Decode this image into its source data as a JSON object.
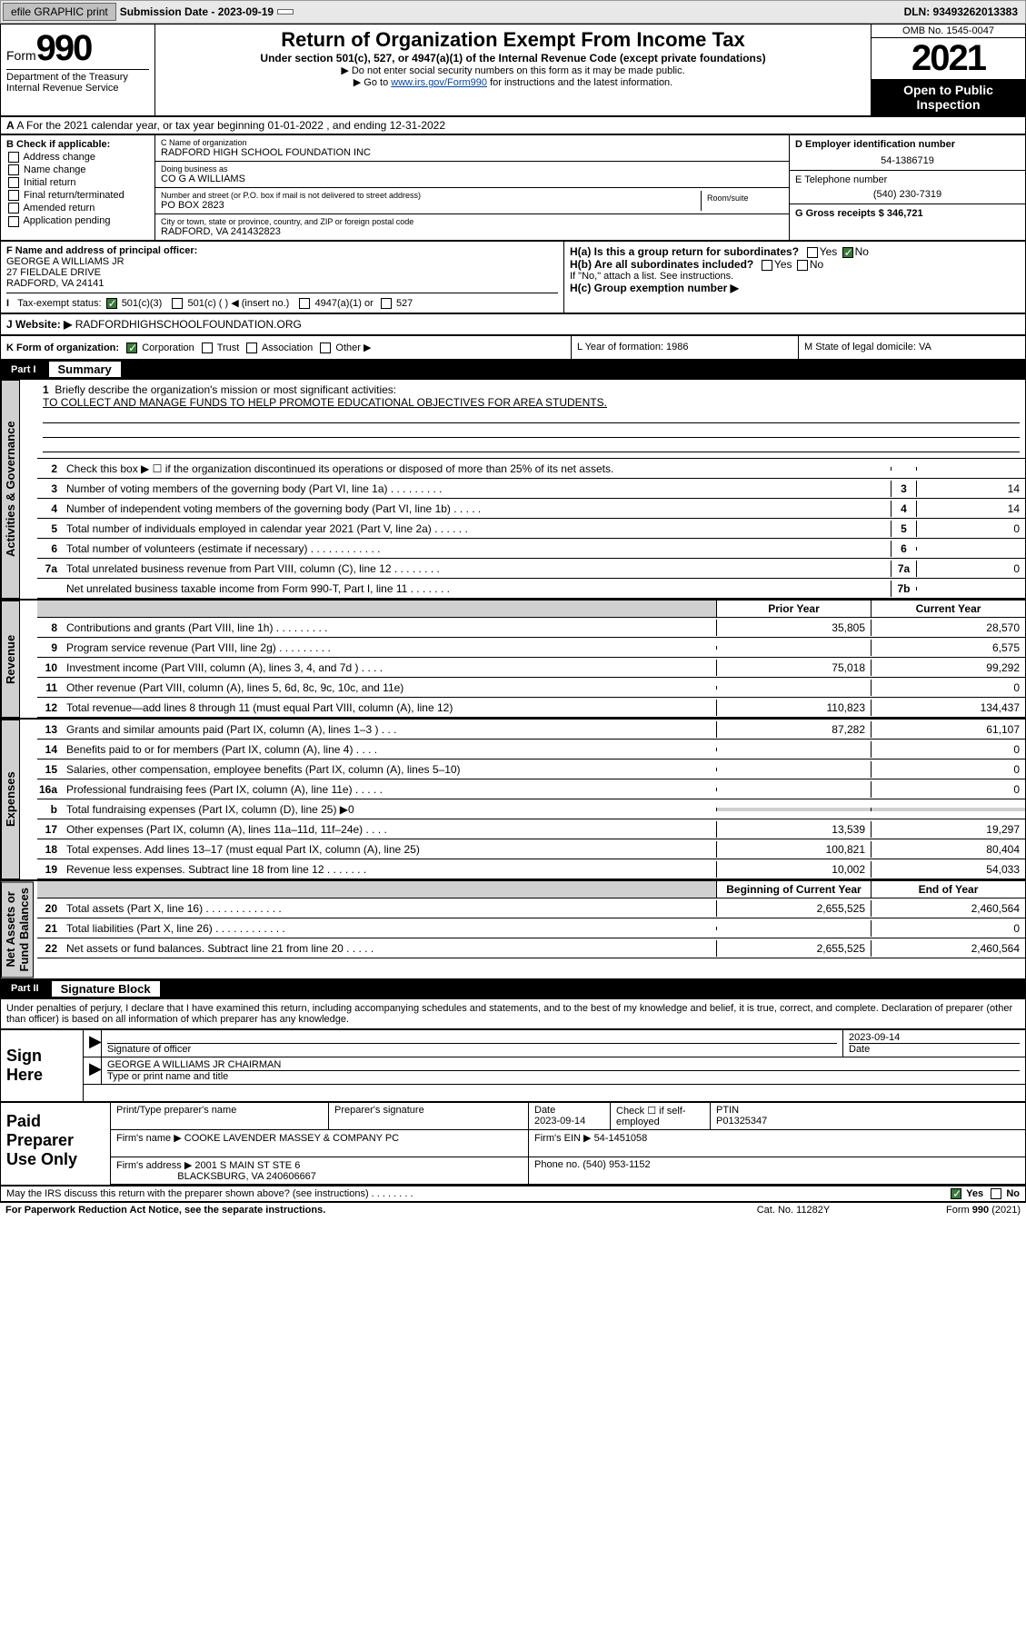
{
  "topbar": {
    "efile": "efile GRAPHIC print",
    "submission_label": "Submission Date - 2023-09-19",
    "dln": "DLN: 93493262013383"
  },
  "header": {
    "form_word": "Form",
    "form_num": "990",
    "title": "Return of Organization Exempt From Income Tax",
    "subtitle": "Under section 501(c), 527, or 4947(a)(1) of the Internal Revenue Code (except private foundations)",
    "note1": "▶ Do not enter social security numbers on this form as it may be made public.",
    "note2_pre": "▶ Go to ",
    "note2_link": "www.irs.gov/Form990",
    "note2_post": " for instructions and the latest information.",
    "dept": "Department of the Treasury\nInternal Revenue Service",
    "omb": "OMB No. 1545-0047",
    "year": "2021",
    "open": "Open to Public Inspection"
  },
  "rowA": "A For the 2021 calendar year, or tax year beginning 01-01-2022    , and ending 12-31-2022",
  "colB": {
    "title": "B Check if applicable:",
    "opts": [
      "Address change",
      "Name change",
      "Initial return",
      "Final return/terminated",
      "Amended return",
      "Application pending"
    ]
  },
  "colC": {
    "name_lbl": "C Name of organization",
    "name": "RADFORD HIGH SCHOOL FOUNDATION INC",
    "dba_lbl": "Doing business as",
    "dba": "CO G A WILLIAMS",
    "street_lbl": "Number and street (or P.O. box if mail is not delivered to street address)",
    "room_lbl": "Room/suite",
    "street": "PO BOX 2823",
    "city_lbl": "City or town, state or province, country, and ZIP or foreign postal code",
    "city": "RADFORD, VA  241432823"
  },
  "colDE": {
    "d_lbl": "D Employer identification number",
    "d_val": "54-1386719",
    "e_lbl": "E Telephone number",
    "e_val": "(540) 230-7319",
    "g_lbl": "G Gross receipts $ 346,721"
  },
  "secF": {
    "f_lbl": "F Name and address of principal officer:",
    "f_name": "GEORGE A WILLIAMS JR",
    "f_addr1": "27 FIELDALE DRIVE",
    "f_addr2": "RADFORD, VA  24141",
    "ha": "H(a)  Is this a group return for subordinates?",
    "hb": "H(b)  Are all subordinates included?",
    "hb_note": "If \"No,\" attach a list. See instructions.",
    "hc": "H(c)  Group exemption number ▶",
    "yes": "Yes",
    "no": "No"
  },
  "rowI": {
    "label": "Tax-exempt status:",
    "c3": "501(c)(3)",
    "c": "501(c) (  ) ◀ (insert no.)",
    "a1": "4947(a)(1) or",
    "s527": "527"
  },
  "rowJ": {
    "label": "J   Website: ▶",
    "val": "RADFORDHIGHSCHOOLFOUNDATION.ORG"
  },
  "rowK": {
    "label": "K Form of organization:",
    "corp": "Corporation",
    "trust": "Trust",
    "assoc": "Association",
    "other": "Other ▶",
    "l": "L Year of formation: 1986",
    "m": "M State of legal domicile: VA"
  },
  "part1": {
    "num": "Part I",
    "title": "Summary"
  },
  "tabs": {
    "gov": "Activities & Governance",
    "rev": "Revenue",
    "exp": "Expenses",
    "net": "Net Assets or\nFund Balances"
  },
  "mission": {
    "n": "1",
    "lbl": "Briefly describe the organization's mission or most significant activities:",
    "txt": "TO COLLECT AND MANAGE FUNDS TO HELP PROMOTE EDUCATIONAL OBJECTIVES FOR AREA STUDENTS."
  },
  "gov_lines": [
    {
      "n": "2",
      "txt": "Check this box ▶ ☐  if the organization discontinued its operations or disposed of more than 25% of its net assets.",
      "bn": "",
      "bv": ""
    },
    {
      "n": "3",
      "txt": "Number of voting members of the governing body (Part VI, line 1a)  .    .    .    .    .    .    .    .    .",
      "bn": "3",
      "bv": "14"
    },
    {
      "n": "4",
      "txt": "Number of independent voting members of the governing body (Part VI, line 1b)  .    .    .    .    .",
      "bn": "4",
      "bv": "14"
    },
    {
      "n": "5",
      "txt": "Total number of individuals employed in calendar year 2021 (Part V, line 2a)  .    .    .    .    .    .",
      "bn": "5",
      "bv": "0"
    },
    {
      "n": "6",
      "txt": "Total number of volunteers (estimate if necessary)  .    .    .    .    .    .    .    .    .    .    .    .",
      "bn": "6",
      "bv": ""
    },
    {
      "n": "7a",
      "txt": "Total unrelated business revenue from Part VIII, column (C), line 12  .    .    .    .    .    .    .    .",
      "bn": "7a",
      "bv": "0"
    },
    {
      "n": "",
      "txt": "Net unrelated business taxable income from Form 990-T, Part I, line 11  .    .    .    .    .    .    .",
      "bn": "7b",
      "bv": ""
    }
  ],
  "year_hdr": {
    "prior": "Prior Year",
    "current": "Current Year"
  },
  "rev_lines": [
    {
      "n": "8",
      "txt": "Contributions and grants (Part VIII, line 1h)  .    .    .    .    .    .    .    .    .",
      "py": "35,805",
      "cy": "28,570"
    },
    {
      "n": "9",
      "txt": "Program service revenue (Part VIII, line 2g)  .    .    .    .    .    .    .    .    .",
      "py": "",
      "cy": "6,575"
    },
    {
      "n": "10",
      "txt": "Investment income (Part VIII, column (A), lines 3, 4, and 7d )  .    .    .    .",
      "py": "75,018",
      "cy": "99,292"
    },
    {
      "n": "11",
      "txt": "Other revenue (Part VIII, column (A), lines 5, 6d, 8c, 9c, 10c, and 11e)",
      "py": "",
      "cy": "0"
    },
    {
      "n": "12",
      "txt": "Total revenue—add lines 8 through 11 (must equal Part VIII, column (A), line 12)",
      "py": "110,823",
      "cy": "134,437"
    }
  ],
  "exp_lines": [
    {
      "n": "13",
      "txt": "Grants and similar amounts paid (Part IX, column (A), lines 1–3 )  .    .    .",
      "py": "87,282",
      "cy": "61,107"
    },
    {
      "n": "14",
      "txt": "Benefits paid to or for members (Part IX, column (A), line 4)  .    .    .    .",
      "py": "",
      "cy": "0"
    },
    {
      "n": "15",
      "txt": "Salaries, other compensation, employee benefits (Part IX, column (A), lines 5–10)",
      "py": "",
      "cy": "0"
    },
    {
      "n": "16a",
      "txt": "Professional fundraising fees (Part IX, column (A), line 11e)  .    .    .    .    .",
      "py": "",
      "cy": "0"
    },
    {
      "n": "b",
      "txt": "Total fundraising expenses (Part IX, column (D), line 25) ▶0",
      "py": "",
      "cy": "",
      "shade": true
    },
    {
      "n": "17",
      "txt": "Other expenses (Part IX, column (A), lines 11a–11d, 11f–24e)  .    .    .    .",
      "py": "13,539",
      "cy": "19,297"
    },
    {
      "n": "18",
      "txt": "Total expenses. Add lines 13–17 (must equal Part IX, column (A), line 25)",
      "py": "100,821",
      "cy": "80,404"
    },
    {
      "n": "19",
      "txt": "Revenue less expenses. Subtract line 18 from line 12  .    .    .    .    .    .    .",
      "py": "10,002",
      "cy": "54,033"
    }
  ],
  "net_hdr": {
    "beg": "Beginning of Current Year",
    "end": "End of Year"
  },
  "net_lines": [
    {
      "n": "20",
      "txt": "Total assets (Part X, line 16)  .    .    .    .    .    .    .    .    .    .    .    .    .",
      "py": "2,655,525",
      "cy": "2,460,564"
    },
    {
      "n": "21",
      "txt": "Total liabilities (Part X, line 26)  .    .    .    .    .    .    .    .    .    .    .    .",
      "py": "",
      "cy": "0"
    },
    {
      "n": "22",
      "txt": "Net assets or fund balances. Subtract line 21 from line 20  .    .    .    .    .",
      "py": "2,655,525",
      "cy": "2,460,564"
    }
  ],
  "part2": {
    "num": "Part II",
    "title": "Signature Block"
  },
  "decl": "Under penalties of perjury, I declare that I have examined this return, including accompanying schedules and statements, and to the best of my knowledge and belief, it is true, correct, and complete. Declaration of preparer (other than officer) is based on all information of which preparer has any knowledge.",
  "sign": {
    "here": "Sign Here",
    "sig_lbl": "Signature of officer",
    "date_lbl": "Date",
    "date": "2023-09-14",
    "name": "GEORGE A WILLIAMS JR  CHAIRMAN",
    "name_lbl": "Type or print name and title"
  },
  "paid": {
    "title": "Paid Preparer Use Only",
    "h1": "Print/Type preparer's name",
    "h2": "Preparer's signature",
    "h3": "Date",
    "h3v": "2023-09-14",
    "h4": "Check ☐ if self-employed",
    "h5": "PTIN",
    "h5v": "P01325347",
    "firm_lbl": "Firm's name    ▶",
    "firm": "COOKE LAVENDER MASSEY & COMPANY PC",
    "ein_lbl": "Firm's EIN ▶",
    "ein": "54-1451058",
    "addr_lbl": "Firm's address ▶",
    "addr1": "2001 S MAIN ST STE 6",
    "addr2": "BLACKSBURG, VA  240606667",
    "phone_lbl": "Phone no.",
    "phone": "(540) 953-1152"
  },
  "footer": {
    "discuss": "May the IRS discuss this return with the preparer shown above? (see instructions)  .    .    .    .    .    .    .    .",
    "yes": "Yes",
    "no": "No",
    "pra": "For Paperwork Reduction Act Notice, see the separate instructions.",
    "cat": "Cat. No. 11282Y",
    "form": "Form 990 (2021)"
  }
}
